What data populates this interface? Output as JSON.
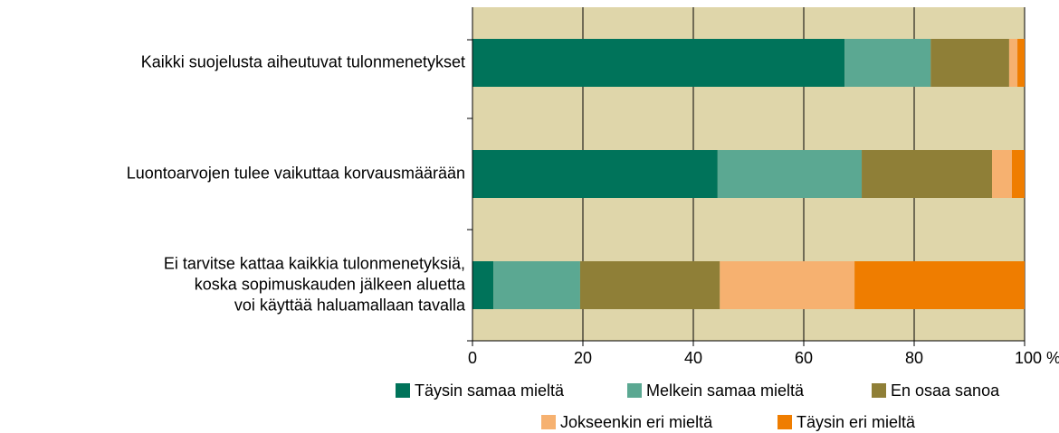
{
  "chart_data": {
    "type": "stacked_bar_horizontal",
    "categories": [
      [
        "Kaikki suojelusta aiheutuvat tulonmenetykset"
      ],
      [
        "Luontoarvojen tulee vaikuttaa korvausmäärään"
      ],
      [
        "Ei tarvitse kattaa kaikkia tulonmenetyksiä,",
        "koska sopimuskauden jälkeen aluetta",
        "voi käyttää haluamallaan tavalla"
      ]
    ],
    "series": [
      {
        "name": "Täysin samaa mieltä",
        "color": "#00735a",
        "values": [
          67.4,
          44.4,
          3.8
        ]
      },
      {
        "name": "Melkein samaa mieltä",
        "color": "#5ba892",
        "values": [
          15.6,
          26.1,
          15.7
        ]
      },
      {
        "name": "En osaa sanoa",
        "color": "#8f7f37",
        "values": [
          14.2,
          23.6,
          25.3
        ]
      },
      {
        "name": "Jokseenkin eri mieltä",
        "color": "#f6b170",
        "values": [
          1.5,
          3.6,
          24.4
        ]
      },
      {
        "name": "Täysin eri mieltä",
        "color": "#ef7d00",
        "values": [
          1.3,
          2.3,
          30.8
        ]
      }
    ],
    "xlim": [
      0,
      100
    ],
    "xticks": [
      0,
      20,
      40,
      60,
      80,
      {
        "value": 100,
        "label": "100 %"
      }
    ],
    "grid": true,
    "background": "#dfd6aa"
  }
}
